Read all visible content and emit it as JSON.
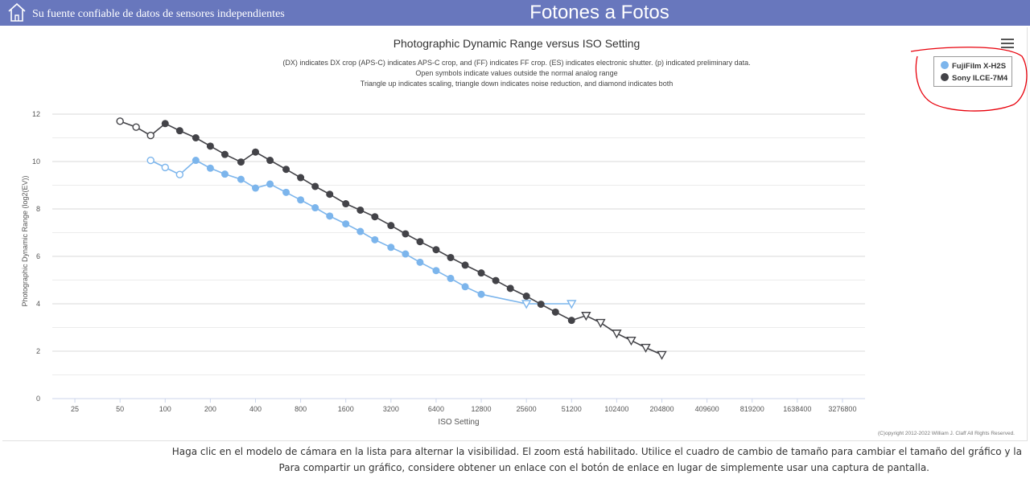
{
  "header": {
    "tagline": "Su fuente confiable de datos de sensores independientes",
    "brand": "Fotones a Fotos",
    "home_icon": "home-icon",
    "bar_color": "#6877bd"
  },
  "chart_data": {
    "type": "line",
    "title": "Photographic Dynamic Range versus ISO Setting",
    "subtitle": [
      "(DX) indicates DX crop (APS-C) indicates APS-C crop, and (FF) indicates FF crop. (ES) indicates electronic shutter. (p) indicated preliminary data.",
      "Open symbols indicate values outside the normal analog range",
      "Triangle up indicates scaling, triangle down indicates noise reduction, and diamond indicates both"
    ],
    "xlabel": "ISO Setting",
    "ylabel": "Photographic Dynamic Range (log2(EV))",
    "x_scale": "log",
    "x_ticks": [
      "25",
      "50",
      "100",
      "200",
      "400",
      "800",
      "1600",
      "3200",
      "6400",
      "12800",
      "25600",
      "51200",
      "102400",
      "204800",
      "409600",
      "819200",
      "1638400",
      "3276800"
    ],
    "y_ticks": [
      "0",
      "2",
      "4",
      "6",
      "8",
      "10",
      "12"
    ],
    "ylim": [
      0,
      12
    ],
    "grid": true,
    "legend_position": "top-right",
    "copyright": "(C)opyright 2012-2022 William J. Claff All Rights Reserved.",
    "series": [
      {
        "name": "FujiFilm X-H2S",
        "color": "#7cb5ec",
        "points": [
          {
            "iso": 80,
            "dr": 10.05,
            "marker": "open-circle"
          },
          {
            "iso": 100,
            "dr": 9.75,
            "marker": "open-circle"
          },
          {
            "iso": 125,
            "dr": 9.45,
            "marker": "open-circle"
          },
          {
            "iso": 160,
            "dr": 10.05,
            "marker": "circle"
          },
          {
            "iso": 200,
            "dr": 9.72,
            "marker": "circle"
          },
          {
            "iso": 250,
            "dr": 9.47,
            "marker": "circle"
          },
          {
            "iso": 320,
            "dr": 9.25,
            "marker": "circle"
          },
          {
            "iso": 400,
            "dr": 8.88,
            "marker": "circle"
          },
          {
            "iso": 500,
            "dr": 9.05,
            "marker": "circle"
          },
          {
            "iso": 640,
            "dr": 8.7,
            "marker": "circle"
          },
          {
            "iso": 800,
            "dr": 8.38,
            "marker": "circle"
          },
          {
            "iso": 1000,
            "dr": 8.05,
            "marker": "circle"
          },
          {
            "iso": 1250,
            "dr": 7.7,
            "marker": "circle"
          },
          {
            "iso": 1600,
            "dr": 7.37,
            "marker": "circle"
          },
          {
            "iso": 2000,
            "dr": 7.05,
            "marker": "circle"
          },
          {
            "iso": 2500,
            "dr": 6.7,
            "marker": "circle"
          },
          {
            "iso": 3200,
            "dr": 6.38,
            "marker": "circle"
          },
          {
            "iso": 4000,
            "dr": 6.1,
            "marker": "circle"
          },
          {
            "iso": 5000,
            "dr": 5.75,
            "marker": "circle"
          },
          {
            "iso": 6400,
            "dr": 5.4,
            "marker": "circle"
          },
          {
            "iso": 8000,
            "dr": 5.07,
            "marker": "circle"
          },
          {
            "iso": 10000,
            "dr": 4.72,
            "marker": "circle"
          },
          {
            "iso": 12800,
            "dr": 4.4,
            "marker": "circle"
          },
          {
            "iso": 25600,
            "dr": 4.0,
            "marker": "open-triangle-down"
          },
          {
            "iso": 51200,
            "dr": 4.0,
            "marker": "open-triangle-down"
          }
        ]
      },
      {
        "name": "Sony ILCE-7M4",
        "color": "#434348",
        "points": [
          {
            "iso": 50,
            "dr": 11.7,
            "marker": "open-circle"
          },
          {
            "iso": 64,
            "dr": 11.45,
            "marker": "open-circle"
          },
          {
            "iso": 80,
            "dr": 11.1,
            "marker": "open-circle"
          },
          {
            "iso": 100,
            "dr": 11.6,
            "marker": "circle"
          },
          {
            "iso": 125,
            "dr": 11.3,
            "marker": "circle"
          },
          {
            "iso": 160,
            "dr": 11.0,
            "marker": "circle"
          },
          {
            "iso": 200,
            "dr": 10.65,
            "marker": "circle"
          },
          {
            "iso": 250,
            "dr": 10.3,
            "marker": "circle"
          },
          {
            "iso": 320,
            "dr": 9.98,
            "marker": "circle"
          },
          {
            "iso": 400,
            "dr": 10.4,
            "marker": "circle"
          },
          {
            "iso": 500,
            "dr": 10.05,
            "marker": "circle"
          },
          {
            "iso": 640,
            "dr": 9.67,
            "marker": "circle"
          },
          {
            "iso": 800,
            "dr": 9.32,
            "marker": "circle"
          },
          {
            "iso": 1000,
            "dr": 8.95,
            "marker": "circle"
          },
          {
            "iso": 1250,
            "dr": 8.62,
            "marker": "circle"
          },
          {
            "iso": 1600,
            "dr": 8.22,
            "marker": "circle"
          },
          {
            "iso": 2000,
            "dr": 7.95,
            "marker": "circle"
          },
          {
            "iso": 2500,
            "dr": 7.67,
            "marker": "circle"
          },
          {
            "iso": 3200,
            "dr": 7.3,
            "marker": "circle"
          },
          {
            "iso": 4000,
            "dr": 6.95,
            "marker": "circle"
          },
          {
            "iso": 5000,
            "dr": 6.62,
            "marker": "circle"
          },
          {
            "iso": 6400,
            "dr": 6.28,
            "marker": "circle"
          },
          {
            "iso": 8000,
            "dr": 5.95,
            "marker": "circle"
          },
          {
            "iso": 10000,
            "dr": 5.63,
            "marker": "circle"
          },
          {
            "iso": 12800,
            "dr": 5.3,
            "marker": "circle"
          },
          {
            "iso": 16000,
            "dr": 4.98,
            "marker": "circle"
          },
          {
            "iso": 20000,
            "dr": 4.65,
            "marker": "circle"
          },
          {
            "iso": 25600,
            "dr": 4.32,
            "marker": "circle"
          },
          {
            "iso": 32000,
            "dr": 3.98,
            "marker": "circle"
          },
          {
            "iso": 40000,
            "dr": 3.65,
            "marker": "circle"
          },
          {
            "iso": 51200,
            "dr": 3.3,
            "marker": "circle"
          },
          {
            "iso": 64000,
            "dr": 3.5,
            "marker": "open-triangle-down"
          },
          {
            "iso": 80000,
            "dr": 3.2,
            "marker": "open-triangle-down"
          },
          {
            "iso": 102400,
            "dr": 2.75,
            "marker": "open-triangle-down"
          },
          {
            "iso": 128000,
            "dr": 2.45,
            "marker": "open-triangle-down"
          },
          {
            "iso": 160000,
            "dr": 2.15,
            "marker": "open-triangle-down"
          },
          {
            "iso": 204800,
            "dr": 1.85,
            "marker": "open-triangle-down"
          }
        ]
      }
    ]
  },
  "chart_menu_icon": "hamburger-menu-icon",
  "annotation": {
    "color": "#e8000b"
  },
  "footer": {
    "line1": "Haga clic en el modelo de cámara en la lista para alternar la visibilidad. El zoom está habilitado. Utilice el cuadro de cambio de tamaño para cambiar el tamaño del gráfico y la",
    "line2": "Para compartir un gráfico, considere obtener un enlace con el botón de enlace en lugar de simplemente usar una captura de pantalla."
  }
}
